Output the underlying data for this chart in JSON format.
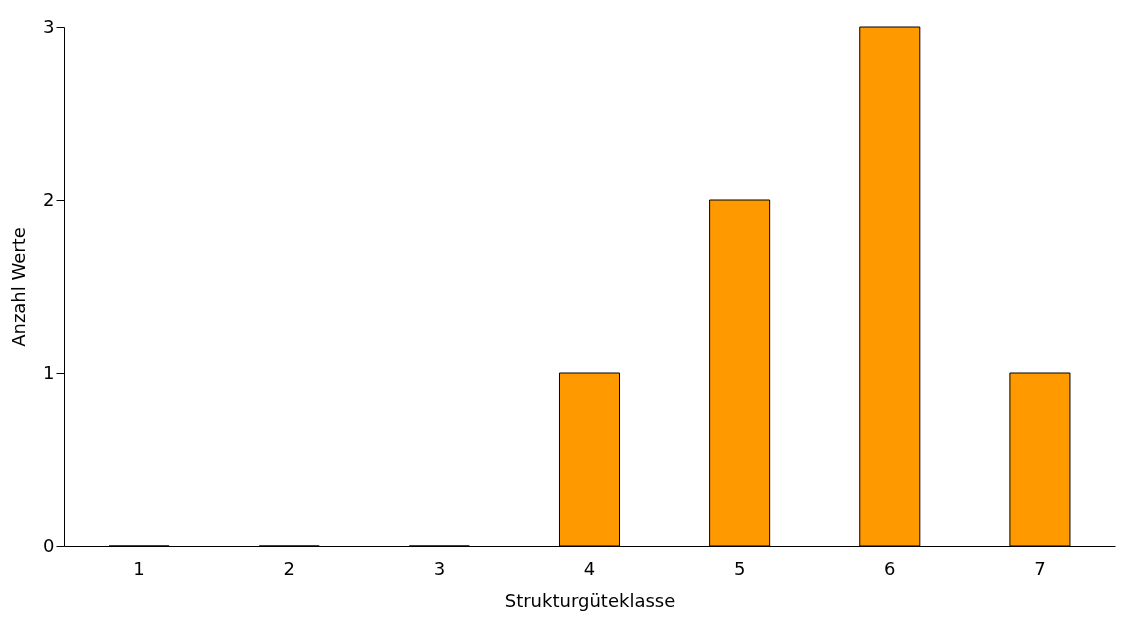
{
  "chart_data": {
    "type": "bar",
    "xlabel": "Strukturgüteklasse",
    "ylabel": "Anzahl Werte",
    "categories": [
      "1",
      "2",
      "3",
      "4",
      "5",
      "6",
      "7"
    ],
    "values": [
      0,
      0,
      0,
      1,
      2,
      3,
      1
    ],
    "color": "#ff9900",
    "ylim": [
      0,
      3
    ],
    "yticks": [
      0,
      1,
      2,
      3
    ],
    "grid": false
  }
}
